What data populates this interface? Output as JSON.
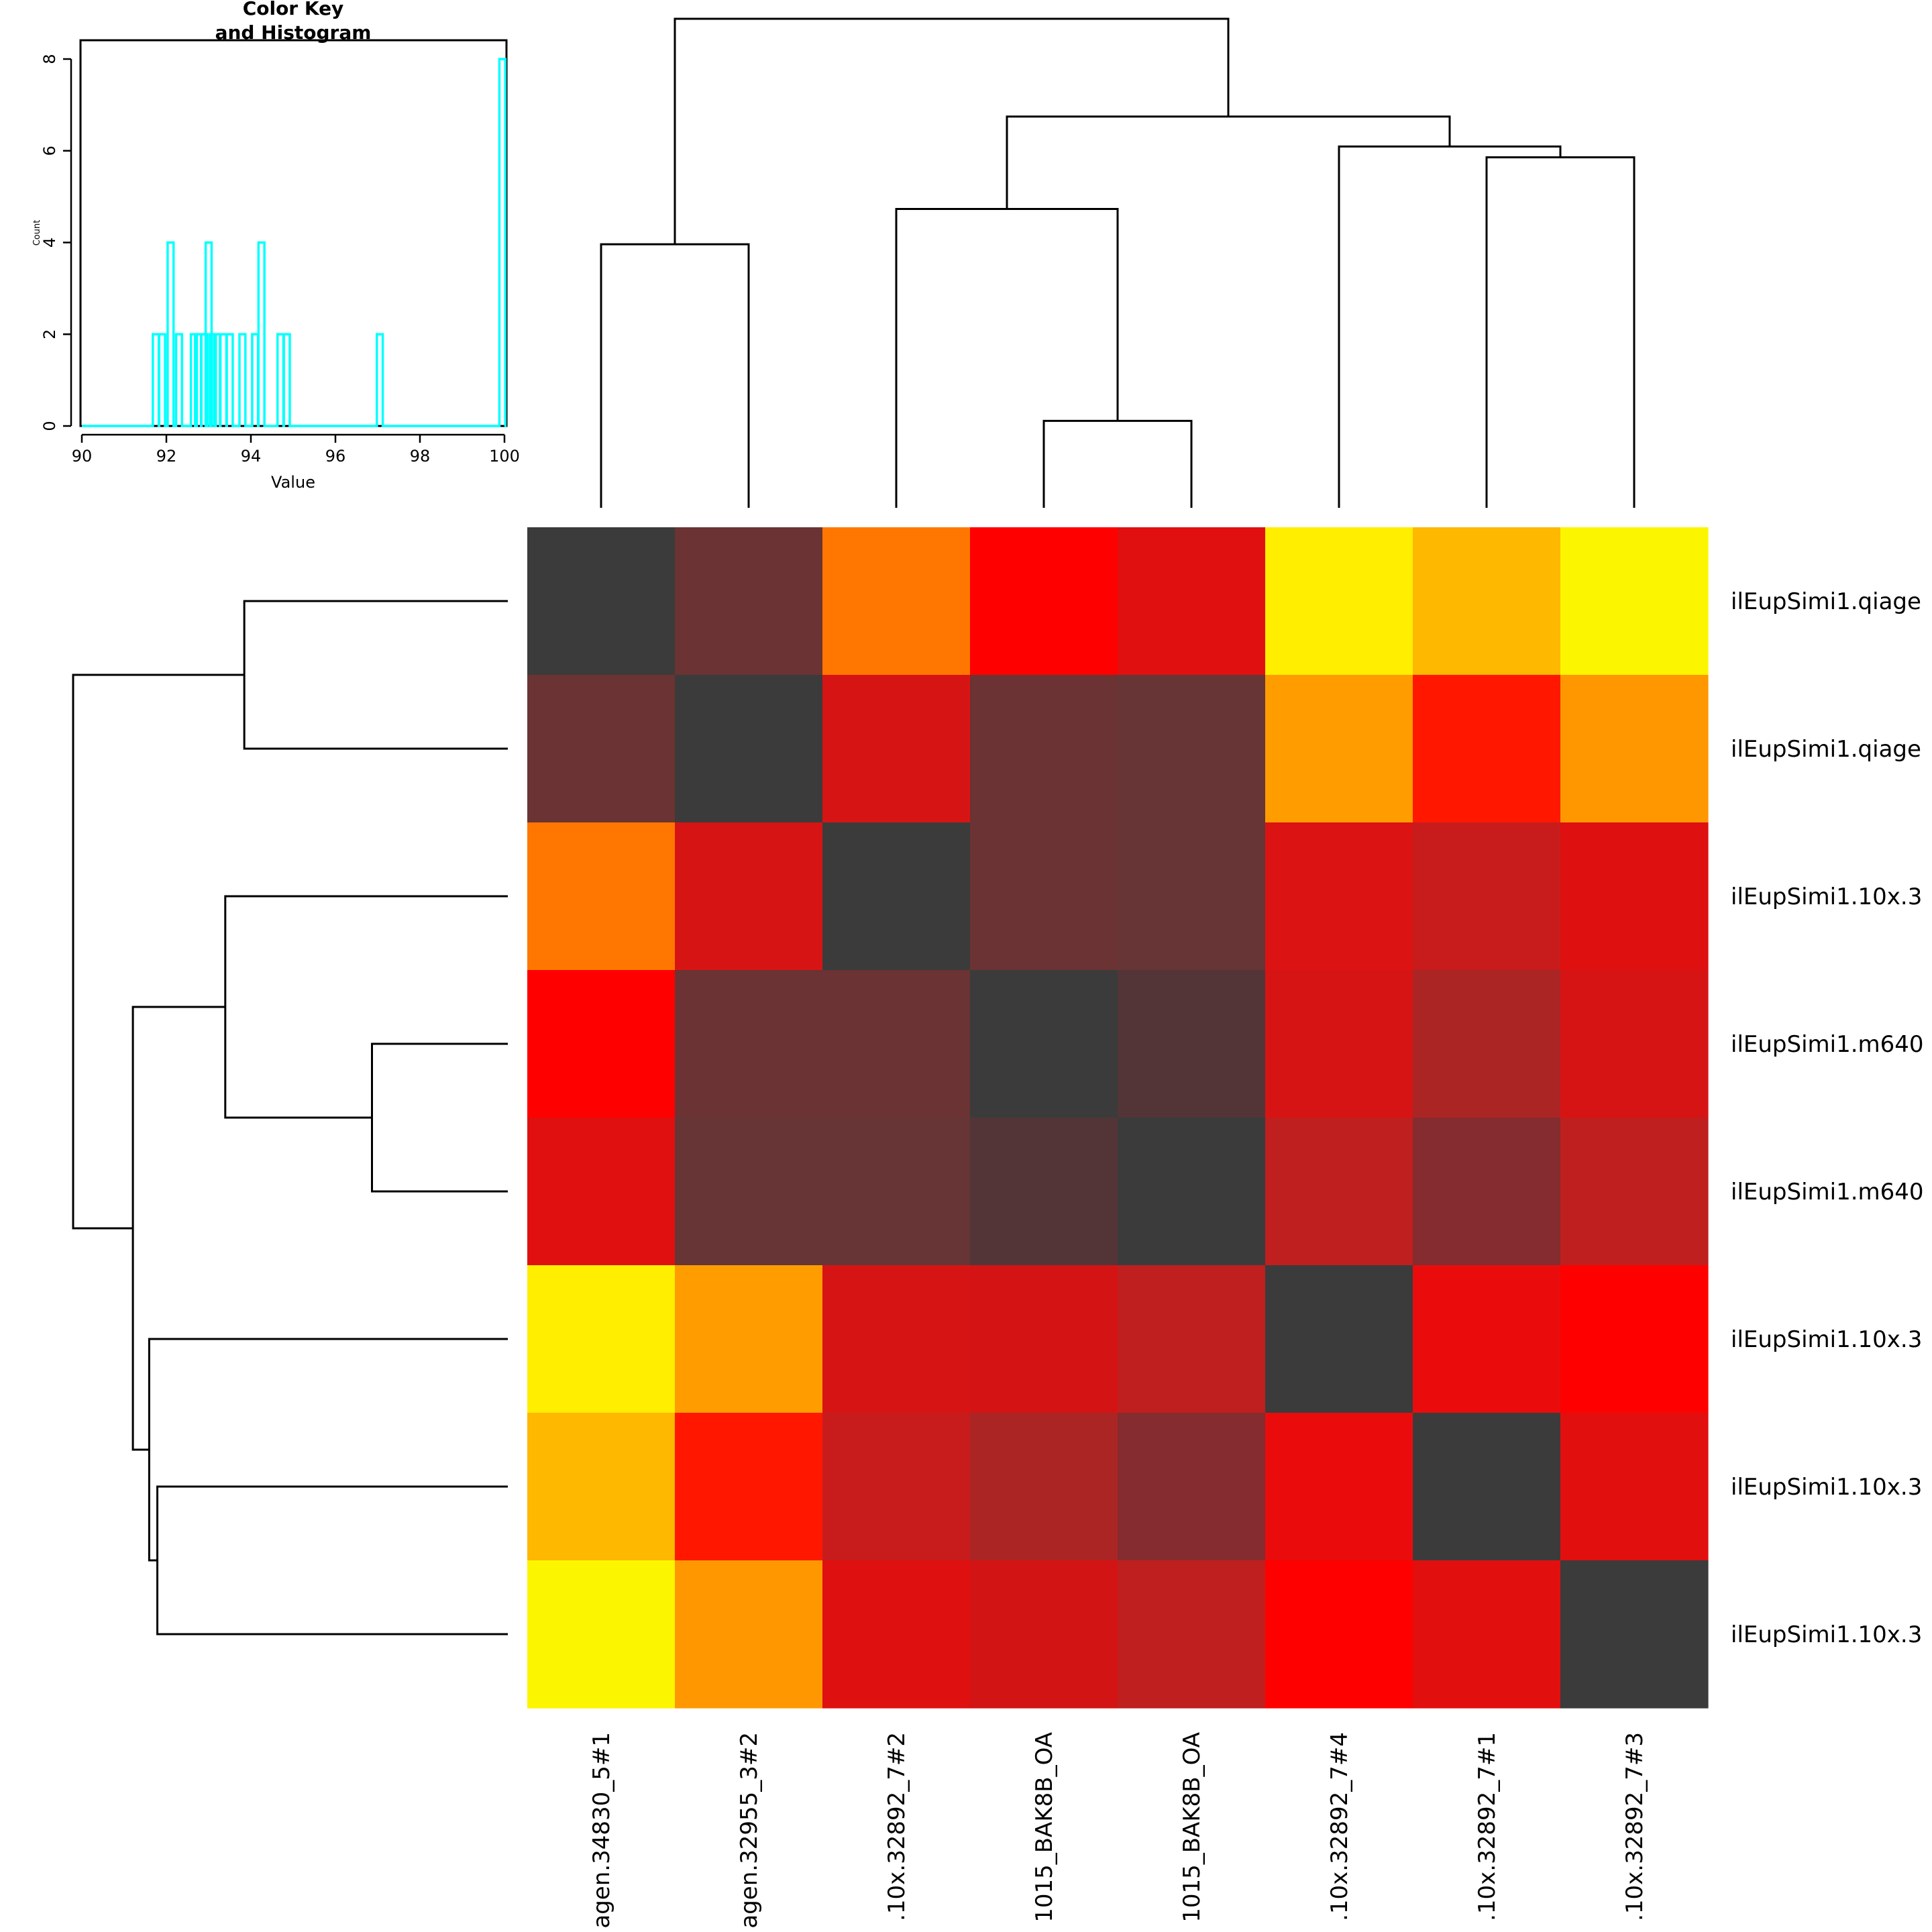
{
  "chart_data": {
    "type": "heatmap",
    "row_labels": [
      "ilEupSimi1.qiage",
      "ilEupSimi1.qiage",
      "ilEupSimi1.10x.3",
      "ilEupSimi1.m640",
      "ilEupSimi1.m640",
      "ilEupSimi1.10x.3",
      "ilEupSimi1.10x.3",
      "ilEupSimi1.10x.3"
    ],
    "col_labels": [
      "agen.34830_5#1",
      "agen.32955_3#2",
      ".10x.32892_7#2",
      "1015_BAK8B_OA",
      "1015_BAK8B_OA",
      ".10x.32892_7#4",
      ".10x.32892_7#1",
      ".10x.32892_7#3"
    ],
    "cell_colors": [
      [
        "#3b3b3b",
        "#6b3333",
        "#ff7700",
        "#ff0000",
        "#e01010",
        "#ffee00",
        "#ffb800",
        "#fcf500"
      ],
      [
        "#6b3333",
        "#3b3b3b",
        "#d71414",
        "#6b3333",
        "#673535",
        "#ff9d00",
        "#ff1700",
        "#ff9800"
      ],
      [
        "#ff7700",
        "#d71414",
        "#3b3b3b",
        "#6b3333",
        "#673535",
        "#db1313",
        "#c81c1c",
        "#df1010"
      ],
      [
        "#ff0000",
        "#6b3333",
        "#6b3333",
        "#3b3b3b",
        "#533538",
        "#d61414",
        "#ab2525",
        "#d71414"
      ],
      [
        "#e01010",
        "#673535",
        "#673535",
        "#533538",
        "#3b3b3b",
        "#c01f1f",
        "#842c2f",
        "#bf1f1f"
      ],
      [
        "#ffee00",
        "#ff9d00",
        "#d71414",
        "#d41414",
        "#bf1f1f",
        "#3b3b3b",
        "#ea0c0c",
        "#ff0000"
      ],
      [
        "#ffb800",
        "#ff1700",
        "#c81c1c",
        "#ab2525",
        "#842c2f",
        "#ea0c0c",
        "#3b3b3b",
        "#e20f0f"
      ],
      [
        "#fcf500",
        "#ff9800",
        "#df1010",
        "#d31414",
        "#bf1f1f",
        "#ff0000",
        "#e20f0f",
        "#3b3b3b"
      ]
    ],
    "col_dendrogram": [
      {
        "left": 0,
        "right": 1,
        "height": 4.85
      },
      {
        "left": 3,
        "right": 4,
        "height": 1.6
      },
      {
        "left": 2,
        "right": "m1",
        "height": 5.5
      },
      {
        "left": 6,
        "right": 7,
        "height": 6.45
      },
      {
        "left": 5,
        "right": "m3",
        "height": 6.65
      },
      {
        "left": "m2",
        "right": "m4",
        "height": 7.2
      },
      {
        "left": "m0",
        "right": "m5",
        "height": 9.0
      }
    ],
    "row_dendrogram": [
      {
        "left": 0,
        "right": 1,
        "height": 4.85
      },
      {
        "left": 3,
        "right": 4,
        "height": 2.5
      },
      {
        "left": 2,
        "right": "m1",
        "height": 5.2
      },
      {
        "left": 6,
        "right": 7,
        "height": 6.45
      },
      {
        "left": 5,
        "right": "m3",
        "height": 6.6
      },
      {
        "left": "m2",
        "right": "m4",
        "height": 6.9
      },
      {
        "left": "m0",
        "right": "m5",
        "height": 8.0
      }
    ],
    "dendrogram_max_height": 9.0,
    "color_key": {
      "title_line1": "Color Key",
      "title_line2": "and Histogram",
      "xlabel": "Value",
      "ylabel": "Count",
      "xlim": [
        90,
        100
      ],
      "ylim": [
        0,
        8
      ],
      "xticks": [
        90,
        92,
        94,
        96,
        98,
        100
      ],
      "yticks": [
        0,
        2,
        4,
        6,
        8
      ],
      "line_color": "#00ffff",
      "histogram_bins": [
        {
          "x": 91.75,
          "count": 2
        },
        {
          "x": 91.9,
          "count": 2
        },
        {
          "x": 92.1,
          "count": 4
        },
        {
          "x": 92.3,
          "count": 2
        },
        {
          "x": 92.65,
          "count": 2
        },
        {
          "x": 92.75,
          "count": 2
        },
        {
          "x": 92.9,
          "count": 2
        },
        {
          "x": 93.0,
          "count": 4
        },
        {
          "x": 93.1,
          "count": 2
        },
        {
          "x": 93.2,
          "count": 2
        },
        {
          "x": 93.35,
          "count": 2
        },
        {
          "x": 93.5,
          "count": 2
        },
        {
          "x": 93.8,
          "count": 2
        },
        {
          "x": 94.1,
          "count": 2
        },
        {
          "x": 94.25,
          "count": 4
        },
        {
          "x": 94.7,
          "count": 2
        },
        {
          "x": 94.85,
          "count": 2
        },
        {
          "x": 97.05,
          "count": 2
        },
        {
          "x": 99.95,
          "count": 8
        }
      ]
    }
  }
}
